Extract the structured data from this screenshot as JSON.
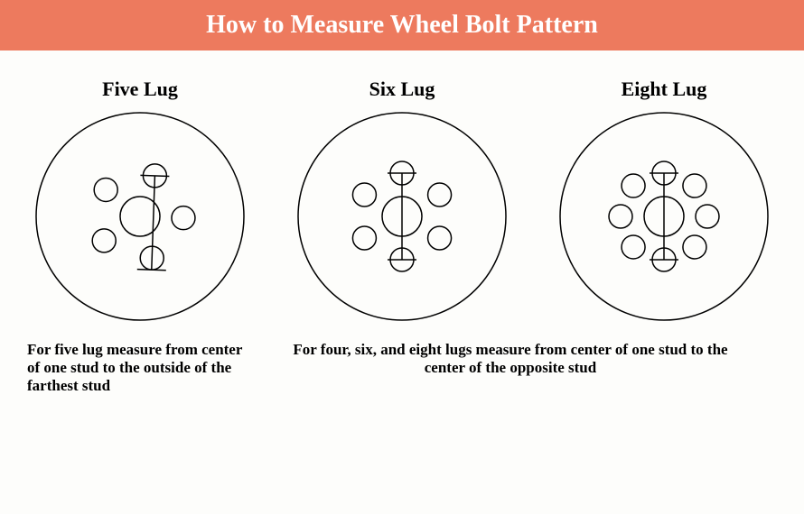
{
  "header": {
    "title": "How to Measure Wheel Bolt Pattern",
    "background_color": "#ed7a5e",
    "text_color": "#ffffff",
    "fontsize": 28
  },
  "diagrams": {
    "outer_radius": 115,
    "hub_radius": 22,
    "lug_radius": 13,
    "lug_orbit_radius": 48,
    "stroke_color": "#000000",
    "stroke_width": 1.5,
    "mark_half": 16,
    "title_fontsize": 22,
    "panels": [
      {
        "key": "five",
        "title": "Five Lug",
        "lug_count": 5,
        "start_angle_deg": -70,
        "measure": {
          "type": "odd",
          "from_index": 0,
          "to_index": 2
        }
      },
      {
        "key": "six",
        "title": "Six Lug",
        "lug_count": 6,
        "start_angle_deg": -90,
        "measure": {
          "type": "even",
          "from_index": 0,
          "to_index": 3
        }
      },
      {
        "key": "eight",
        "title": "Eight Lug",
        "lug_count": 8,
        "start_angle_deg": -90,
        "measure": {
          "type": "even",
          "from_index": 0,
          "to_index": 4
        }
      }
    ]
  },
  "captions": {
    "fontsize": 17,
    "left": "For five lug measure from center of one stud to the outside of the farthest stud",
    "right": "For four, six, and eight lugs measure from center of one stud to the center of the opposite stud"
  }
}
